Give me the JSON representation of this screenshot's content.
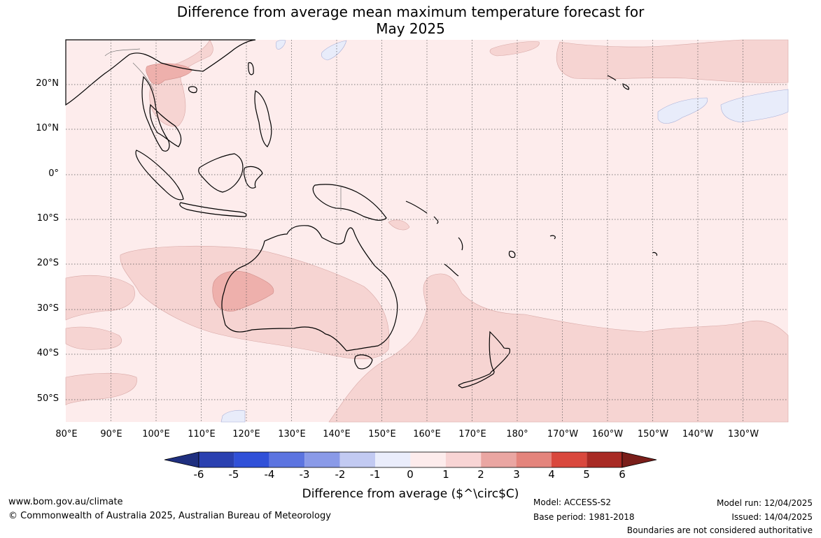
{
  "title": {
    "line1": "Difference from average mean maximum temperature forecast for",
    "line2": "May 2025"
  },
  "map": {
    "lat_labels": [
      "20°N",
      "10°N",
      "0°",
      "10°S",
      "20°S",
      "30°S",
      "40°S",
      "50°S"
    ],
    "lon_labels": [
      "80°E",
      "90°E",
      "100°E",
      "110°E",
      "120°E",
      "130°E",
      "140°E",
      "150°E",
      "160°E",
      "170°E",
      "180°",
      "170°W",
      "160°W",
      "150°W",
      "140°W",
      "130°W"
    ]
  },
  "colorbar": {
    "title": "Difference from average ($^\\circ$C)",
    "tick_labels": [
      "-6",
      "-5",
      "-4",
      "-3",
      "-2",
      "-1",
      "0",
      "1",
      "2",
      "3",
      "4",
      "5",
      "6"
    ],
    "colors": [
      "#1f2f7f",
      "#2a40b0",
      "#3050d8",
      "#5c74e0",
      "#8a9ae8",
      "#c2caf2",
      "#eaedfb",
      "#fdecec",
      "#f8d4d4",
      "#eaa6a2",
      "#e4847c",
      "#d9483d",
      "#a82a24",
      "#7a1e1a"
    ],
    "tick_color": "#000000"
  },
  "footer": {
    "website": "www.bom.gov.au/climate",
    "copyright": "© Commonwealth of Australia 2025, Australian Bureau of Meteorology",
    "model": "Model: ACCESS-S2",
    "base_period": "Base period: 1981-2018",
    "model_run": "Model run: 12/04/2025",
    "issued": "Issued: 14/04/2025",
    "disclaimer": "Boundaries are not considered authoritative"
  },
  "colors": {
    "background_anomaly_0_1": "#fdecec",
    "anomaly_1_2": "#f6d4d2",
    "anomaly_2_3": "#eeb0ac",
    "anomaly_neg": "#e8ecfa",
    "coastline": "#000000",
    "gridline": "#555555"
  }
}
